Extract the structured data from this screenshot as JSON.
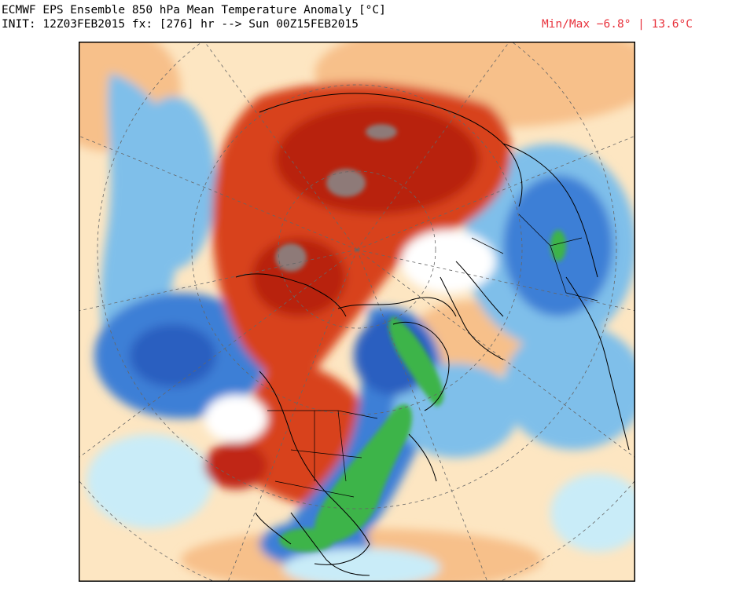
{
  "header": {
    "title": "ECMWF EPS Ensemble 850 hPa Mean Temperature Anomaly [°C]",
    "init_line": "INIT: 12Z03FEB2015 fx: [276] hr --> Sun 00Z15FEB2015",
    "minmax": "Min/Max −6.8° | 13.6°C"
  },
  "map": {
    "projection": "polar stereographic, North Pole",
    "field": "850 hPa temperature anomaly",
    "colors": {
      "strong_warm": "#b8200e",
      "warm": "#d8431e",
      "moderate_warm": "#f08a4b",
      "weak_warm": "#f7c08a",
      "slight_warm": "#fde6c2",
      "neutral": "#ffffff",
      "slight_cold": "#c9ecf8",
      "weak_cold": "#7fbfea",
      "cold": "#3d7fd6",
      "strong_cold": "#2c5fc0",
      "extreme_cold": "#3cb44a",
      "extreme_warm": "#8e7a78"
    }
  }
}
